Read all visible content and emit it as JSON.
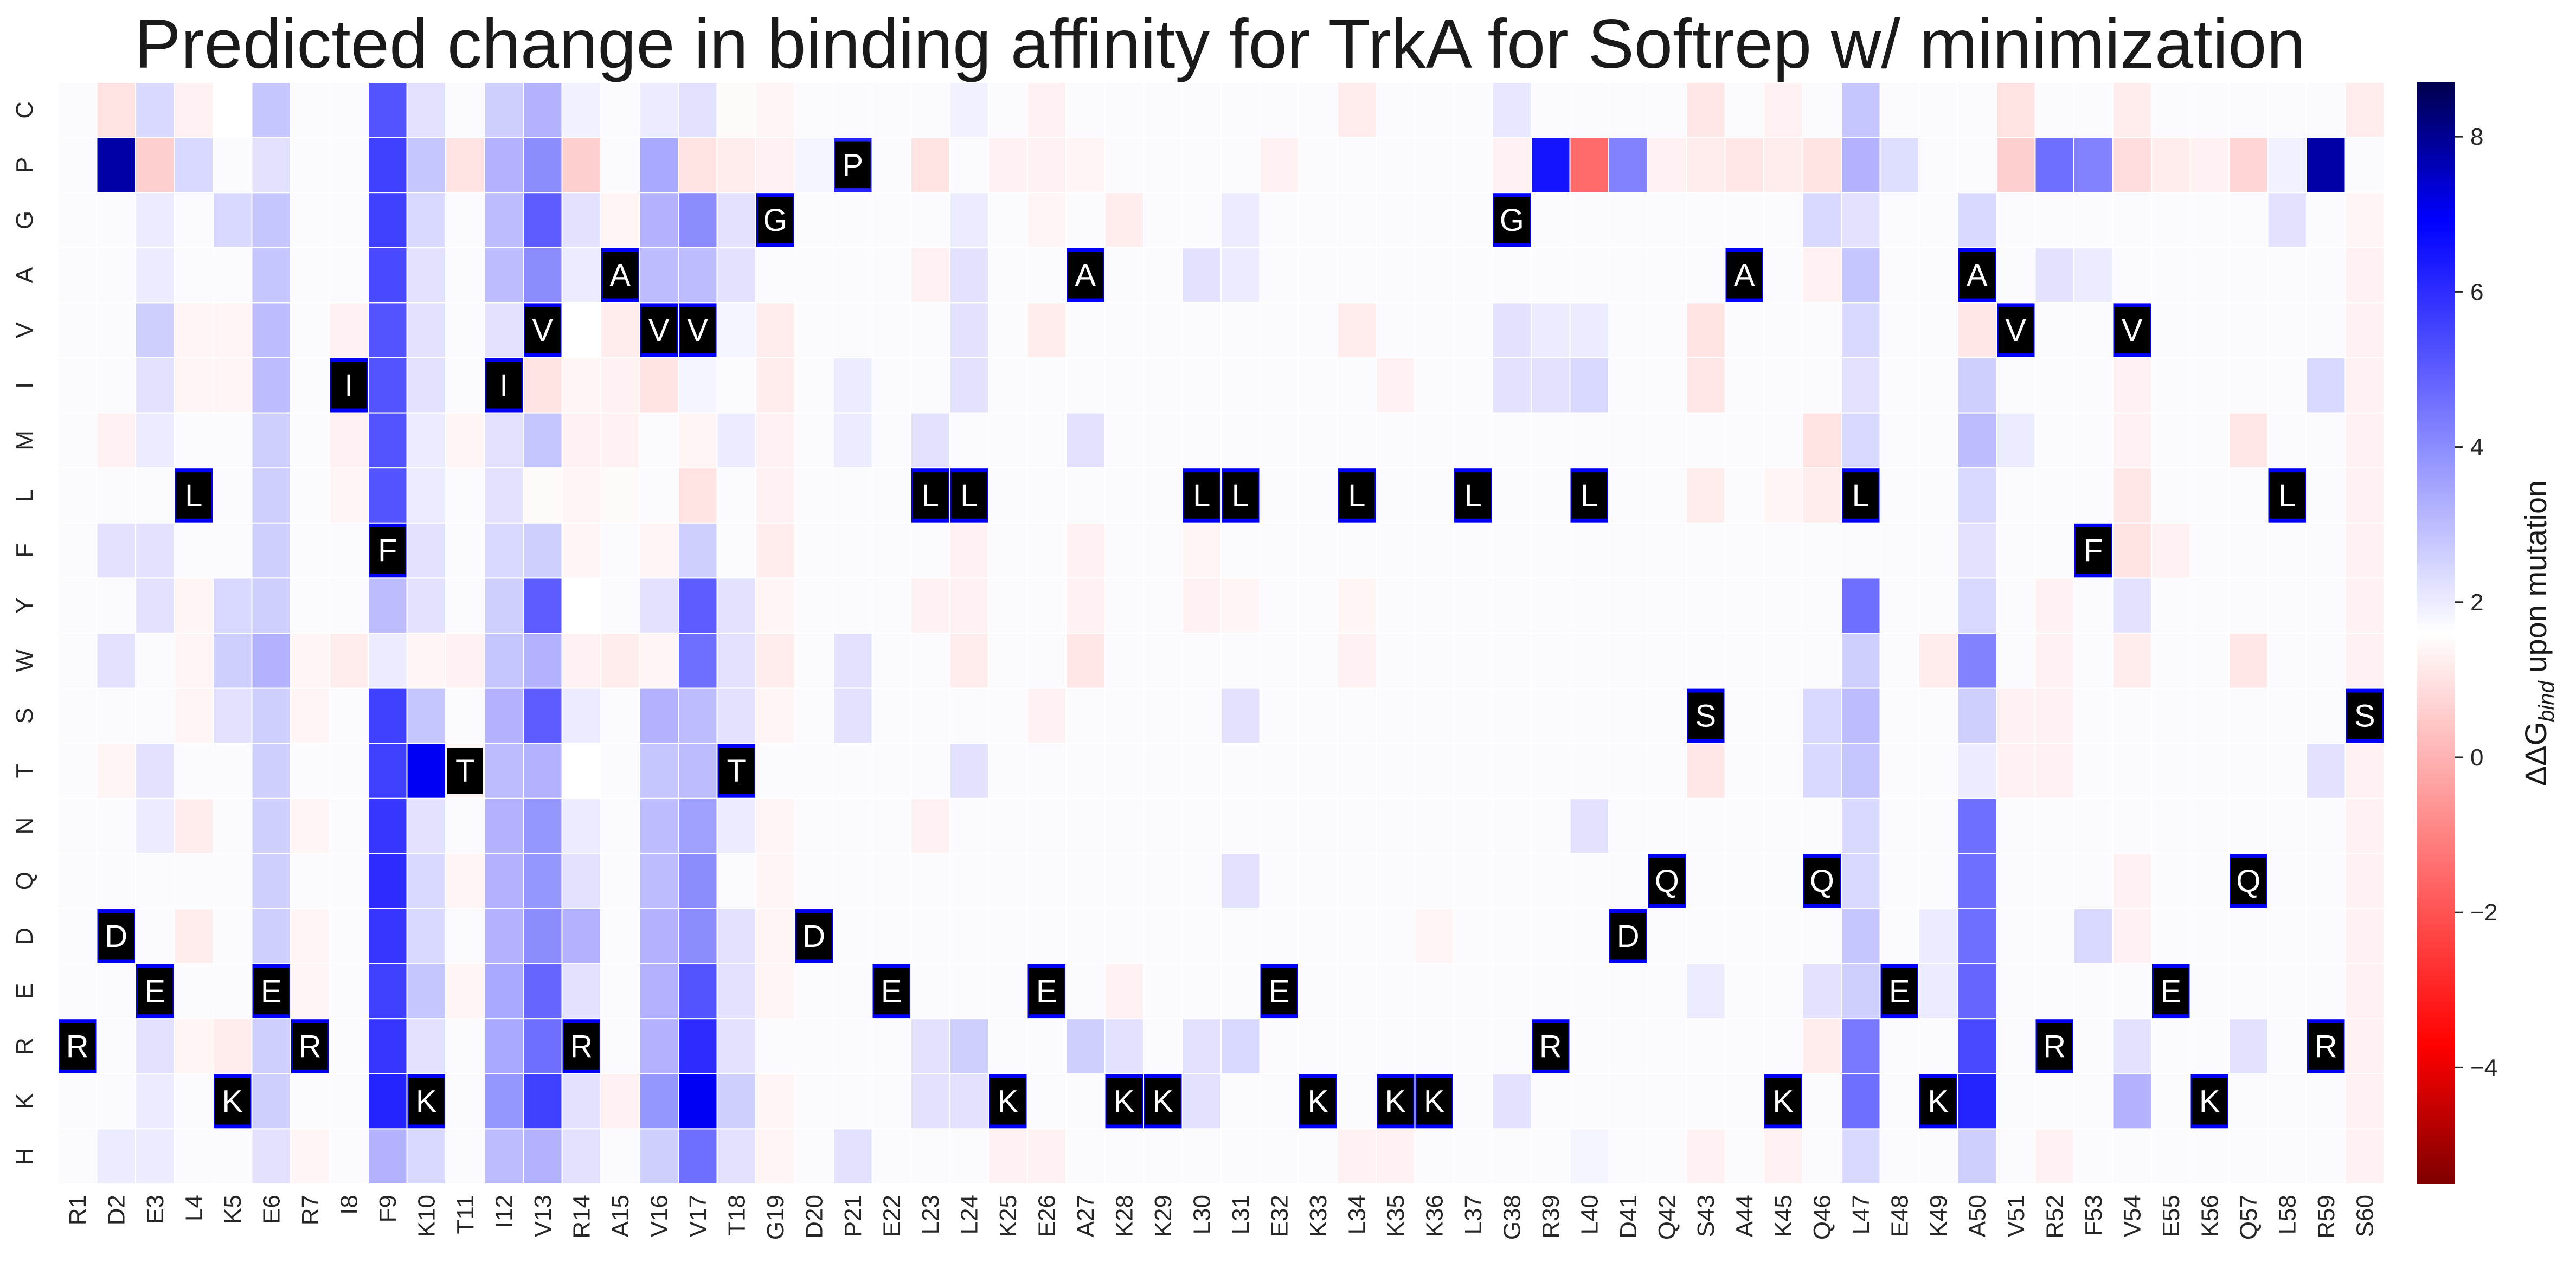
{
  "chart_data": {
    "type": "heatmap",
    "title": "Predicted change in binding affinity for TrkA for Softrep w/ minimization",
    "xlabel": "",
    "ylabel": "",
    "colorbar_label": "ΔΔG",
    "colorbar_label_sub": "bind",
    "colorbar_label_rest": " upon mutation",
    "colormap": "seismic_r (dark red → red → white → blue → dark navy)",
    "vmin": -5.5,
    "vmax": 8.7,
    "colorbar_ticks": [
      -4,
      -2,
      0,
      2,
      4,
      6,
      8
    ],
    "positions": [
      "R1",
      "D2",
      "E3",
      "L4",
      "K5",
      "E6",
      "R7",
      "I8",
      "F9",
      "K10",
      "T11",
      "I12",
      "V13",
      "R14",
      "A15",
      "V16",
      "V17",
      "T18",
      "G19",
      "D20",
      "P21",
      "E22",
      "L23",
      "L24",
      "K25",
      "E26",
      "A27",
      "K28",
      "K29",
      "L30",
      "L31",
      "E32",
      "K33",
      "L34",
      "K35",
      "K36",
      "L37",
      "G38",
      "R39",
      "L40",
      "D41",
      "Q42",
      "S43",
      "A44",
      "K45",
      "Q46",
      "L47",
      "E48",
      "K49",
      "A50",
      "V51",
      "R52",
      "F53",
      "V54",
      "E55",
      "K56",
      "Q57",
      "L58",
      "R59",
      "S60"
    ],
    "mutations": [
      "C",
      "P",
      "G",
      "A",
      "V",
      "I",
      "M",
      "L",
      "F",
      "Y",
      "W",
      "S",
      "T",
      "N",
      "Q",
      "D",
      "E",
      "R",
      "K",
      "H"
    ],
    "default_value": 1.7,
    "overrides": {
      "C": {
        "D2": 1.0,
        "E3": 2.4,
        "L4": 1.3,
        "K5": 1.6,
        "E6": 2.8,
        "F9": 5.2,
        "K10": 2.2,
        "I12": 2.6,
        "V13": 3.2,
        "R14": 1.9,
        "V16": 2.0,
        "V17": 2.2,
        "T18": 1.5,
        "G19": 1.4,
        "L24": 1.9,
        "E26": 1.3,
        "L34": 1.2,
        "G38": 2.1,
        "S43": 1.1,
        "K45": 1.3,
        "L47": 2.8,
        "V51": 1.0,
        "V54": 1.2,
        "S60": 1.2
      },
      "P": {
        "D2": 7.8,
        "E3": 0.6,
        "L4": 2.4,
        "E6": 2.2,
        "F9": 5.6,
        "K10": 2.8,
        "T11": 1.0,
        "I12": 3.2,
        "V13": 4.0,
        "R14": 0.6,
        "V16": 3.4,
        "V17": 1.0,
        "T18": 1.2,
        "G19": 1.3,
        "D20": 1.8,
        "P21": 6.2,
        "L23": 1.0,
        "K25": 1.3,
        "E26": 1.3,
        "A27": 1.4,
        "E32": 1.3,
        "G38": 1.3,
        "R39": 6.5,
        "L40": -1.5,
        "D41": 4.2,
        "Q42": 1.3,
        "S43": 1.2,
        "A44": 1.1,
        "K45": 1.2,
        "Q46": 1.0,
        "L47": 3.2,
        "E48": 2.3,
        "V51": 0.6,
        "R52": 4.6,
        "F53": 4.2,
        "V54": 0.9,
        "E55": 1.2,
        "K56": 1.3,
        "Q57": 0.7,
        "L58": 1.9,
        "R59": 7.8
      },
      "G": {
        "E3": 2.0,
        "K5": 2.4,
        "E6": 2.8,
        "F9": 5.6,
        "K10": 2.4,
        "I12": 3.0,
        "V13": 5.0,
        "R14": 2.2,
        "A15": 1.4,
        "V16": 3.2,
        "V17": 4.0,
        "T18": 2.2,
        "G19": 7.0,
        "L24": 2.0,
        "E26": 1.4,
        "K28": 1.2,
        "L31": 2.0,
        "G38": 7.0,
        "Q46": 2.4,
        "L47": 2.2,
        "A50": 2.4,
        "L58": 2.2,
        "S60": 1.4
      },
      "A": {
        "E3": 2.0,
        "E6": 2.8,
        "F9": 5.4,
        "K10": 2.2,
        "I12": 3.0,
        "V13": 4.0,
        "R14": 2.0,
        "A15": 7.0,
        "V16": 3.0,
        "V17": 3.0,
        "T18": 2.2,
        "L23": 1.3,
        "L24": 2.2,
        "A27": 7.0,
        "L30": 2.2,
        "L31": 2.0,
        "A44": 7.0,
        "Q46": 1.3,
        "L47": 2.8,
        "A50": 7.0,
        "R52": 2.2,
        "F53": 2.0,
        "S60": 1.3
      },
      "V": {
        "E3": 2.6,
        "L4": 1.4,
        "K5": 1.4,
        "E6": 3.0,
        "I8": 1.3,
        "F9": 5.2,
        "K10": 2.2,
        "I12": 2.2,
        "V13": 7.0,
        "R14": 1.6,
        "A15": 1.2,
        "V16": 7.0,
        "V17": 7.0,
        "T18": 1.8,
        "G19": 1.2,
        "L24": 2.2,
        "E26": 1.2,
        "L34": 1.2,
        "G38": 2.2,
        "R39": 2.0,
        "L40": 2.0,
        "S43": 1.0,
        "L47": 2.4,
        "A50": 1.1,
        "V51": 7.0,
        "V54": 7.0,
        "S60": 1.3
      },
      "I": {
        "E3": 2.2,
        "L4": 1.4,
        "K5": 1.4,
        "E6": 3.0,
        "I8": 7.0,
        "F9": 5.2,
        "K10": 2.2,
        "I12": 7.0,
        "V13": 1.0,
        "R14": 1.4,
        "A15": 1.3,
        "V16": 1.0,
        "V17": 1.8,
        "G19": 1.2,
        "P21": 2.0,
        "L24": 2.2,
        "K35": 1.3,
        "G38": 2.2,
        "R39": 2.2,
        "L40": 2.4,
        "S43": 1.1,
        "L47": 2.2,
        "A50": 2.6,
        "V54": 1.3,
        "R59": 2.4,
        "S60": 1.3
      },
      "M": {
        "D2": 1.3,
        "E3": 2.0,
        "E6": 2.6,
        "I8": 1.3,
        "F9": 5.2,
        "K10": 2.0,
        "T11": 1.4,
        "I12": 2.2,
        "V13": 2.8,
        "R14": 1.3,
        "A15": 1.3,
        "V17": 1.4,
        "T18": 2.0,
        "G19": 1.3,
        "P21": 2.0,
        "L23": 2.2,
        "A27": 2.2,
        "Q46": 1.0,
        "L47": 2.4,
        "A50": 3.0,
        "V51": 2.0,
        "V54": 1.3,
        "Q57": 1.1,
        "S60": 1.3
      },
      "L": {
        "L4": 7.0,
        "E6": 2.6,
        "I8": 1.4,
        "F9": 5.2,
        "K10": 2.0,
        "I12": 2.2,
        "V13": 1.5,
        "R14": 1.4,
        "A15": 1.5,
        "V17": 1.0,
        "G19": 1.3,
        "L23": 7.0,
        "L24": 7.0,
        "L30": 7.0,
        "L31": 7.0,
        "L34": 7.0,
        "L37": 7.0,
        "L40": 7.0,
        "S43": 1.2,
        "K45": 1.4,
        "Q46": 1.2,
        "L47": 7.0,
        "A50": 2.4,
        "V54": 1.1,
        "L58": 7.0,
        "S60": 1.3
      },
      "F": {
        "D2": 2.2,
        "E3": 2.2,
        "E6": 2.6,
        "F9": 7.0,
        "K10": 2.2,
        "I12": 2.4,
        "V13": 2.6,
        "R14": 1.4,
        "V16": 1.4,
        "V17": 2.6,
        "G19": 1.2,
        "L24": 1.3,
        "A27": 1.3,
        "L30": 1.4,
        "A50": 2.2,
        "F53": 7.0,
        "V54": 1.0,
        "E55": 1.3,
        "S60": 1.3
      },
      "Y": {
        "E3": 2.2,
        "L4": 1.4,
        "K5": 2.4,
        "E6": 2.6,
        "F9": 3.0,
        "K10": 2.2,
        "I12": 2.6,
        "V13": 5.0,
        "R14": 1.6,
        "V16": 2.2,
        "V17": 5.0,
        "T18": 2.2,
        "G19": 1.4,
        "L23": 1.3,
        "L24": 1.3,
        "A27": 1.3,
        "L30": 1.3,
        "L31": 1.4,
        "L34": 1.4,
        "L47": 4.6,
        "A50": 2.4,
        "R52": 1.3,
        "V54": 2.2,
        "S60": 1.3
      },
      "W": {
        "D2": 2.2,
        "L4": 1.4,
        "K5": 2.6,
        "E6": 3.2,
        "R7": 1.4,
        "I8": 1.2,
        "F9": 2.0,
        "K10": 1.4,
        "T11": 1.3,
        "I12": 2.8,
        "V13": 3.2,
        "R14": 1.3,
        "A15": 1.2,
        "V16": 1.4,
        "V17": 4.6,
        "T18": 2.2,
        "G19": 1.2,
        "P21": 2.2,
        "L24": 1.2,
        "A27": 1.1,
        "L34": 1.3,
        "L47": 2.6,
        "K49": 1.2,
        "A50": 4.2,
        "R52": 1.3,
        "V54": 1.2,
        "Q57": 1.1,
        "S60": 1.3
      },
      "S": {
        "L4": 1.4,
        "K5": 2.2,
        "E6": 2.6,
        "R7": 1.4,
        "F9": 5.6,
        "K10": 2.8,
        "I12": 3.2,
        "V13": 5.0,
        "R14": 2.0,
        "V16": 3.2,
        "V17": 3.0,
        "T18": 2.2,
        "G19": 1.4,
        "P21": 2.2,
        "E26": 1.3,
        "L31": 2.2,
        "S43": 7.0,
        "Q46": 2.4,
        "L47": 3.0,
        "A50": 2.6,
        "V51": 1.3,
        "R52": 1.3,
        "S60": 7.0
      },
      "T": {
        "D2": 1.4,
        "E3": 2.2,
        "E6": 2.6,
        "F9": 5.6,
        "K10": 7.0,
        "T11": 1.4,
        "I12": 3.0,
        "V13": 3.2,
        "R14": 1.6,
        "V16": 2.8,
        "V17": 3.0,
        "T18": 7.0,
        "L24": 2.2,
        "S43": 1.1,
        "Q46": 2.4,
        "L47": 2.8,
        "A50": 2.0,
        "V51": 1.3,
        "R52": 1.3,
        "R59": 2.2,
        "S60": 1.3
      },
      "N": {
        "E3": 2.0,
        "L4": 1.2,
        "E6": 2.6,
        "R7": 1.4,
        "F9": 5.8,
        "K10": 2.2,
        "I12": 3.2,
        "V13": 3.8,
        "R14": 2.0,
        "V16": 3.0,
        "V17": 3.6,
        "T18": 2.0,
        "G19": 1.4,
        "L23": 1.3,
        "L40": 2.2,
        "L47": 2.4,
        "A50": 4.6,
        "S60": 1.3
      },
      "Q": {
        "E6": 2.6,
        "F9": 6.0,
        "K10": 2.4,
        "T11": 1.4,
        "I12": 3.2,
        "V13": 3.8,
        "R14": 2.2,
        "V16": 3.0,
        "V17": 4.0,
        "G19": 1.4,
        "L31": 2.2,
        "Q42": 7.0,
        "Q46": 7.0,
        "L47": 2.4,
        "A50": 4.6,
        "V54": 1.3,
        "Q57": 7.0,
        "S60": 1.3
      },
      "D": {
        "D2": 7.0,
        "L4": 1.2,
        "E6": 2.6,
        "R7": 1.4,
        "F9": 5.8,
        "K10": 2.4,
        "I12": 3.2,
        "V13": 4.0,
        "R14": 3.2,
        "V16": 3.2,
        "V17": 4.0,
        "T18": 2.2,
        "G19": 1.4,
        "D20": 7.0,
        "K36": 1.4,
        "D41": 7.0,
        "L47": 2.8,
        "K49": 2.0,
        "A50": 4.6,
        "F53": 2.4,
        "V54": 1.3,
        "S60": 1.3
      },
      "E": {
        "E3": 7.0,
        "E6": 7.0,
        "R7": 1.4,
        "F9": 5.6,
        "K10": 2.8,
        "T11": 1.4,
        "I12": 3.4,
        "V13": 4.8,
        "R14": 2.2,
        "V16": 3.2,
        "V17": 5.2,
        "T18": 2.2,
        "G19": 1.4,
        "E22": 7.0,
        "E26": 7.0,
        "K28": 1.3,
        "E32": 7.0,
        "S43": 2.0,
        "Q46": 2.2,
        "L47": 2.6,
        "E48": 7.0,
        "K49": 2.0,
        "A50": 4.8,
        "E55": 7.0,
        "S60": 1.3
      },
      "R": {
        "R1": 7.0,
        "E3": 2.2,
        "L4": 1.4,
        "K5": 1.2,
        "E6": 2.6,
        "R7": 7.0,
        "F9": 5.8,
        "K10": 2.2,
        "I12": 3.4,
        "V13": 4.6,
        "R14": 7.0,
        "V16": 3.2,
        "V17": 6.0,
        "T18": 2.2,
        "L23": 2.2,
        "L24": 2.6,
        "A27": 2.6,
        "K28": 2.2,
        "L30": 2.2,
        "L31": 2.4,
        "R39": 7.0,
        "Q46": 1.2,
        "L47": 4.4,
        "A50": 5.4,
        "R52": 7.0,
        "V54": 2.2,
        "Q57": 2.2,
        "R59": 7.0,
        "S60": 1.3
      },
      "K": {
        "E3": 2.0,
        "K5": 7.0,
        "E6": 2.6,
        "F9": 6.2,
        "K10": 7.0,
        "I12": 3.8,
        "V13": 5.6,
        "R14": 2.2,
        "A15": 1.3,
        "V16": 3.8,
        "V17": 7.0,
        "T18": 2.6,
        "G19": 1.4,
        "L23": 2.2,
        "L24": 2.2,
        "K25": 7.0,
        "K28": 7.0,
        "K29": 7.0,
        "L30": 2.2,
        "K33": 7.0,
        "K35": 7.0,
        "K36": 7.0,
        "G38": 2.2,
        "K45": 7.0,
        "K49": 7.0,
        "L47": 4.6,
        "A50": 6.2,
        "V54": 3.2,
        "K56": 7.0,
        "S60": 1.3
      },
      "H": {
        "D2": 2.0,
        "E3": 2.0,
        "E6": 2.2,
        "R7": 1.4,
        "F9": 3.2,
        "K10": 2.4,
        "I12": 3.0,
        "V13": 3.2,
        "R14": 2.2,
        "V16": 2.6,
        "V17": 4.6,
        "T18": 2.2,
        "G19": 1.4,
        "P21": 2.2,
        "K25": 1.3,
        "E26": 1.3,
        "L34": 1.3,
        "K35": 1.3,
        "L40": 1.8,
        "S43": 1.3,
        "K45": 1.3,
        "L47": 2.4,
        "A50": 2.6,
        "R52": 1.3,
        "S60": 1.3
      }
    },
    "wildtype_markers": [
      {
        "pos": "R1",
        "aa": "R"
      },
      {
        "pos": "D2",
        "aa": "D"
      },
      {
        "pos": "E3",
        "aa": "E"
      },
      {
        "pos": "L4",
        "aa": "L"
      },
      {
        "pos": "K5",
        "aa": "K"
      },
      {
        "pos": "E6",
        "aa": "E"
      },
      {
        "pos": "R7",
        "aa": "R"
      },
      {
        "pos": "I8",
        "aa": "I"
      },
      {
        "pos": "F9",
        "aa": "F"
      },
      {
        "pos": "K10",
        "aa": "K"
      },
      {
        "pos": "T11",
        "aa": "T"
      },
      {
        "pos": "I12",
        "aa": "I"
      },
      {
        "pos": "V13",
        "aa": "V"
      },
      {
        "pos": "R14",
        "aa": "R"
      },
      {
        "pos": "A15",
        "aa": "A"
      },
      {
        "pos": "V16",
        "aa": "V"
      },
      {
        "pos": "V17",
        "aa": "V"
      },
      {
        "pos": "T18",
        "aa": "T"
      },
      {
        "pos": "G19",
        "aa": "G"
      },
      {
        "pos": "D20",
        "aa": "D"
      },
      {
        "pos": "P21",
        "aa": "P"
      },
      {
        "pos": "E22",
        "aa": "E"
      },
      {
        "pos": "L23",
        "aa": "L"
      },
      {
        "pos": "L24",
        "aa": "L"
      },
      {
        "pos": "K25",
        "aa": "K"
      },
      {
        "pos": "E26",
        "aa": "E"
      },
      {
        "pos": "A27",
        "aa": "A"
      },
      {
        "pos": "K28",
        "aa": "K"
      },
      {
        "pos": "K29",
        "aa": "K"
      },
      {
        "pos": "L30",
        "aa": "L"
      },
      {
        "pos": "L31",
        "aa": "L"
      },
      {
        "pos": "E32",
        "aa": "E"
      },
      {
        "pos": "K33",
        "aa": "K"
      },
      {
        "pos": "L34",
        "aa": "L"
      },
      {
        "pos": "K35",
        "aa": "K"
      },
      {
        "pos": "K36",
        "aa": "K"
      },
      {
        "pos": "L37",
        "aa": "L"
      },
      {
        "pos": "G38",
        "aa": "G"
      },
      {
        "pos": "R39",
        "aa": "R"
      },
      {
        "pos": "L40",
        "aa": "L"
      },
      {
        "pos": "D41",
        "aa": "D"
      },
      {
        "pos": "Q42",
        "aa": "Q"
      },
      {
        "pos": "S43",
        "aa": "S"
      },
      {
        "pos": "A44",
        "aa": "A"
      },
      {
        "pos": "K45",
        "aa": "K"
      },
      {
        "pos": "Q46",
        "aa": "Q"
      },
      {
        "pos": "L47",
        "aa": "L"
      },
      {
        "pos": "E48",
        "aa": "E"
      },
      {
        "pos": "K49",
        "aa": "K"
      },
      {
        "pos": "A50",
        "aa": "A"
      },
      {
        "pos": "V51",
        "aa": "V"
      },
      {
        "pos": "R52",
        "aa": "R"
      },
      {
        "pos": "F53",
        "aa": "F"
      },
      {
        "pos": "V54",
        "aa": "V"
      },
      {
        "pos": "E55",
        "aa": "E"
      },
      {
        "pos": "K56",
        "aa": "K"
      },
      {
        "pos": "Q57",
        "aa": "Q"
      },
      {
        "pos": "L58",
        "aa": "L"
      },
      {
        "pos": "R59",
        "aa": "R"
      },
      {
        "pos": "S60",
        "aa": "S"
      }
    ],
    "grid": false,
    "legend": "colorbar-right"
  }
}
